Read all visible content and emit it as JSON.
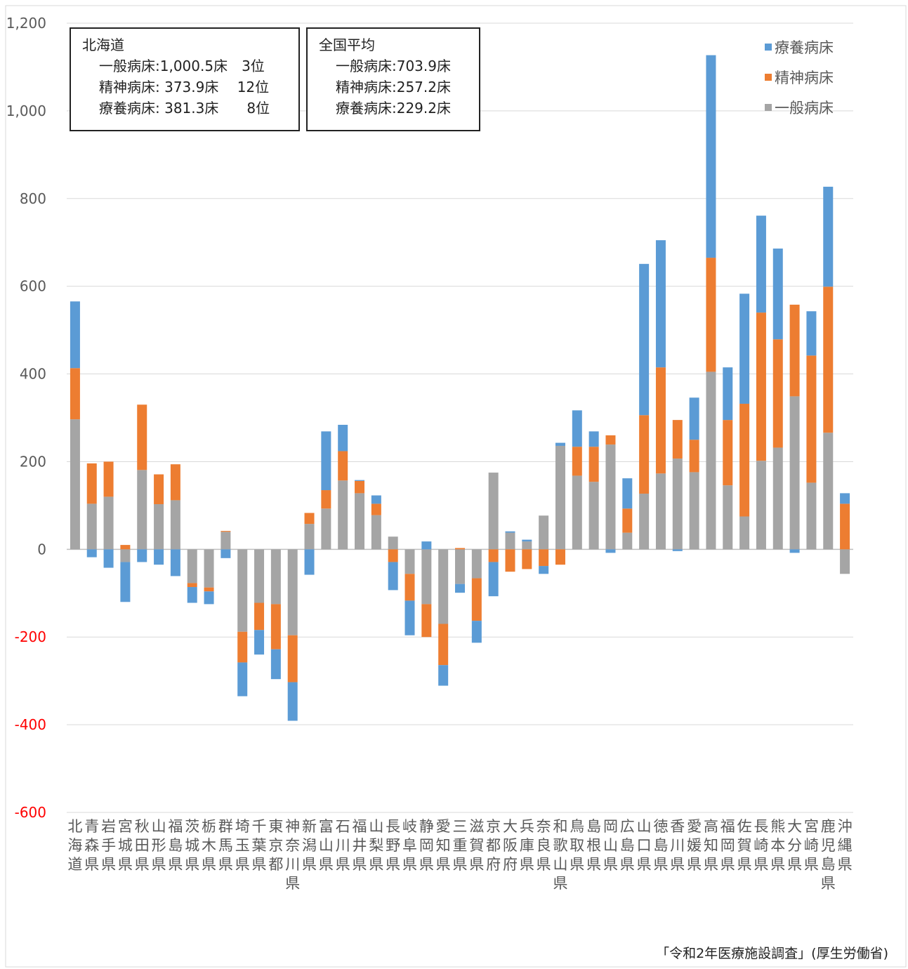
{
  "chart_data": {
    "type": "bar",
    "stacked": true,
    "categories": [
      "北海道",
      "青森県",
      "岩手県",
      "宮城県",
      "秋田県",
      "山形県",
      "福島県",
      "茨城県",
      "栃木県",
      "群馬県",
      "埼玉県",
      "千葉県",
      "東京都",
      "神奈川県",
      "新潟県",
      "富山県",
      "石川県",
      "福井県",
      "山梨県",
      "長野県",
      "岐阜県",
      "静岡県",
      "愛知県",
      "三重県",
      "滋賀県",
      "京都府",
      "大阪府",
      "兵庫県",
      "奈良県",
      "和歌山県",
      "鳥取県",
      "島根県",
      "岡山県",
      "広島県",
      "山口県",
      "徳島県",
      "香川県",
      "愛媛県",
      "高知県",
      "福岡県",
      "佐賀県",
      "長崎県",
      "熊本県",
      "大分県",
      "宮崎県",
      "鹿児島県",
      "沖縄県"
    ],
    "series": [
      {
        "name": "一般病床",
        "color": "#a5a5a5",
        "values": [
          296.6,
          104,
          120,
          -29,
          181,
          103,
          112,
          -77,
          -87,
          40,
          -188,
          -122,
          -125,
          -196,
          58,
          93,
          157,
          128,
          78,
          29,
          -56,
          -125,
          -170,
          -79,
          -66,
          175,
          38,
          18,
          77,
          236,
          168,
          154,
          239,
          38,
          127,
          173,
          207,
          176,
          405,
          146,
          75,
          202,
          232,
          349,
          152,
          266,
          -56
        ]
      },
      {
        "name": "精神病床",
        "color": "#ed7d31",
        "values": [
          116.7,
          92,
          80,
          10,
          149,
          68,
          82,
          -9,
          -9,
          2,
          -70,
          -62,
          -103,
          -107,
          25,
          42,
          67,
          28,
          26,
          -29,
          -61,
          -75,
          -94,
          3,
          -97,
          -29,
          -51,
          -45,
          -38,
          -35,
          66,
          80,
          21,
          55,
          179,
          242,
          88,
          74,
          260,
          149,
          257,
          338,
          247,
          209,
          290,
          333,
          104
        ]
      },
      {
        "name": "療養病床",
        "color": "#5b9bd5",
        "values": [
          152.1,
          -18,
          -42,
          -91,
          -29,
          -35,
          -61,
          -36,
          -29,
          -20,
          -77,
          -56,
          -68,
          -88,
          -58,
          134,
          60,
          2,
          19,
          -64,
          -79,
          18,
          -47,
          -20,
          -50,
          -78,
          3,
          4,
          -18,
          7,
          83,
          35,
          -8,
          69,
          345,
          290,
          -4,
          96,
          462,
          120,
          251,
          221,
          207,
          -8,
          101,
          228,
          24
        ]
      }
    ],
    "ylim": [
      -600,
      1200
    ],
    "yticks": [
      {
        "value": -600,
        "label": "-600"
      },
      {
        "value": -400,
        "label": "-400"
      },
      {
        "value": -200,
        "label": "-200"
      },
      0,
      {
        "value": 200,
        "label": "200"
      },
      {
        "value": 400,
        "label": "400"
      },
      {
        "value": 600,
        "label": "600"
      },
      {
        "value": 800,
        "label": "800"
      },
      {
        "value": 1000,
        "label": "1,000"
      },
      {
        "value": 1200,
        "label": "1,200"
      }
    ],
    "negative_tick_color": "#ff0000",
    "grid": true,
    "legend": "upper right",
    "annotations": [
      {
        "title": "北海道",
        "lines": [
          "一般病床:1,000.5床　3位",
          "精神病床: 373.9床　 12位",
          "療養病床: 381.3床　　8位"
        ]
      },
      {
        "title": "全国平均",
        "lines": [
          "一般病床:703.9床",
          "精神病床:257.2床",
          "療養病床:229.2床"
        ]
      }
    ],
    "source": "「令和2年医療施設調査」(厚生労働省)"
  }
}
